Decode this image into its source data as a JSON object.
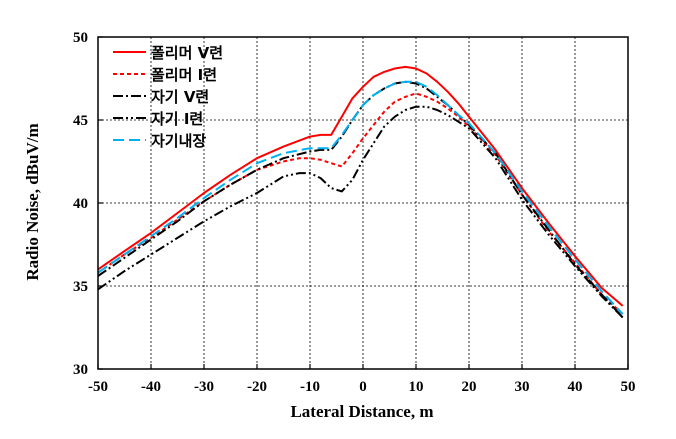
{
  "chart_data": {
    "type": "line",
    "xlabel": "Lateral Distance, m",
    "ylabel": "Radio Noise, dBuV/m",
    "xlim": [
      -50,
      50
    ],
    "ylim": [
      30,
      50
    ],
    "xticks": [
      -50,
      -40,
      -30,
      -20,
      -10,
      0,
      10,
      20,
      30,
      40,
      50
    ],
    "yticks": [
      30,
      35,
      40,
      45,
      50
    ],
    "xtick_labels": [
      "-50",
      "-40",
      "-30",
      "-20",
      "-10",
      "0",
      "10",
      "20",
      "30",
      "40",
      "50"
    ],
    "ytick_labels": [
      "30",
      "35",
      "40",
      "45",
      "50"
    ],
    "grid": true,
    "legend_position": "top-left",
    "series": [
      {
        "name": "폴리머 V련",
        "color": "#ff0000",
        "dash": "solid",
        "x": [
          -50,
          -45,
          -40,
          -35,
          -30,
          -25,
          -20,
          -15,
          -10,
          -8,
          -6,
          -4,
          -2,
          0,
          2,
          4,
          6,
          8,
          10,
          12,
          14,
          16,
          18,
          20,
          25,
          30,
          35,
          40,
          45,
          49
        ],
        "y": [
          36.0,
          37.1,
          38.2,
          39.4,
          40.6,
          41.7,
          42.7,
          43.4,
          44.0,
          44.1,
          44.1,
          45.2,
          46.3,
          47.0,
          47.6,
          47.9,
          48.1,
          48.2,
          48.1,
          47.8,
          47.3,
          46.7,
          46.0,
          45.2,
          43.2,
          40.9,
          38.8,
          36.8,
          34.9,
          33.8
        ]
      },
      {
        "name": "폴리머 I련",
        "color": "#ff0000",
        "dash": "dashed",
        "x": [
          -50,
          -45,
          -40,
          -35,
          -30,
          -25,
          -20,
          -15,
          -12,
          -10,
          -8,
          -6,
          -4,
          -2,
          0,
          2,
          4,
          6,
          8,
          10,
          12,
          14,
          16,
          18,
          20,
          25,
          30,
          35,
          40,
          45,
          49
        ],
        "y": [
          35.8,
          36.9,
          37.9,
          39.0,
          40.1,
          41.1,
          42.0,
          42.5,
          42.7,
          42.7,
          42.6,
          42.4,
          42.2,
          43.0,
          43.9,
          44.7,
          45.5,
          46.1,
          46.4,
          46.6,
          46.4,
          46.1,
          45.7,
          45.2,
          44.6,
          42.9,
          40.5,
          38.3,
          36.4,
          34.5,
          33.3
        ]
      },
      {
        "name": "자기 V련",
        "color": "#000000",
        "dash": "dashdot",
        "x": [
          -50,
          -45,
          -40,
          -35,
          -30,
          -25,
          -20,
          -15,
          -10,
          -8,
          -6,
          -4,
          -2,
          0,
          2,
          4,
          6,
          8,
          10,
          12,
          14,
          16,
          18,
          20,
          25,
          30,
          35,
          40,
          45,
          49
        ],
        "y": [
          35.6,
          36.7,
          37.8,
          38.9,
          40.1,
          41.1,
          42.0,
          42.7,
          43.1,
          43.2,
          43.2,
          44.0,
          45.0,
          45.9,
          46.5,
          46.9,
          47.2,
          47.3,
          47.2,
          46.9,
          46.4,
          45.9,
          45.3,
          44.7,
          43.0,
          40.5,
          38.4,
          36.3,
          34.5,
          33.1
        ]
      },
      {
        "name": "자기 I련",
        "color": "#000000",
        "dash": "dashdotdot",
        "x": [
          -50,
          -45,
          -40,
          -35,
          -30,
          -25,
          -20,
          -15,
          -12,
          -10,
          -8,
          -6,
          -4,
          -2,
          0,
          2,
          4,
          6,
          8,
          10,
          12,
          14,
          16,
          18,
          20,
          25,
          30,
          35,
          40,
          45,
          49
        ],
        "y": [
          34.8,
          35.9,
          36.9,
          37.9,
          38.9,
          39.8,
          40.6,
          41.6,
          41.8,
          41.8,
          41.5,
          40.9,
          40.7,
          41.4,
          42.6,
          43.6,
          44.6,
          45.2,
          45.6,
          45.8,
          45.8,
          45.6,
          45.3,
          44.9,
          44.5,
          42.7,
          40.2,
          38.1,
          36.2,
          34.4,
          33.1
        ]
      },
      {
        "name": "자기내장",
        "color": "#00b0f0",
        "dash": "longdash",
        "x": [
          -50,
          -45,
          -40,
          -35,
          -30,
          -25,
          -20,
          -15,
          -10,
          -8,
          -6,
          -4,
          -2,
          0,
          2,
          4,
          6,
          8,
          10,
          12,
          14,
          16,
          18,
          20,
          25,
          30,
          35,
          40,
          45,
          49
        ],
        "y": [
          35.8,
          36.9,
          38.0,
          39.1,
          40.3,
          41.4,
          42.4,
          43.0,
          43.3,
          43.3,
          43.3,
          44.1,
          45.0,
          45.9,
          46.5,
          46.9,
          47.2,
          47.3,
          47.3,
          47.0,
          46.5,
          45.9,
          45.3,
          44.8,
          43.0,
          40.7,
          38.6,
          36.6,
          34.7,
          33.3
        ]
      }
    ]
  }
}
